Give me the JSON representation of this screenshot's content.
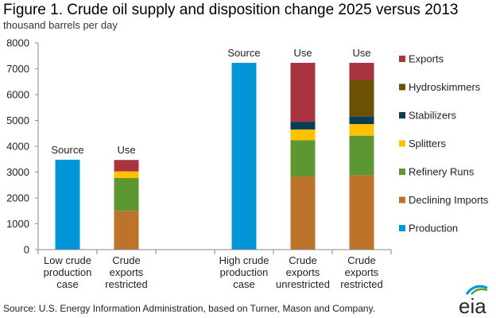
{
  "title": "Figure 1.  Crude oil supply and disposition change 2025 versus 2013",
  "subtitle": "thousand barrels per day",
  "source": "Source:  U.S. Energy Information Administration, based on Turner, Mason and Company.",
  "logo_text": "eia",
  "chart_data": {
    "type": "bar",
    "stacked": true,
    "title": "Figure 1.  Crude oil supply and disposition change 2025 versus 2013",
    "ylabel": "thousand barrels per day",
    "ylim": [
      0,
      8000
    ],
    "yticks": [
      0,
      1000,
      2000,
      3000,
      4000,
      5000,
      6000,
      7000,
      8000
    ],
    "categories": [
      [
        "Low crude",
        "production",
        "case"
      ],
      [
        "Crude",
        "exports",
        "restricted"
      ],
      [],
      [
        "High crude",
        "production",
        "case"
      ],
      [
        "Crude",
        "exports",
        "unrestricted"
      ],
      [
        "Crude",
        "exports",
        "restricted"
      ]
    ],
    "bar_annotations": [
      "Source",
      "Use",
      "",
      "Source",
      "Use",
      "Use"
    ],
    "legend_position": "right",
    "series": [
      {
        "name": "Production",
        "color": "#0096d7",
        "values": [
          3480,
          0,
          0,
          7230,
          0,
          0
        ]
      },
      {
        "name": "Declining Imports",
        "color": "#bd732a",
        "values": [
          0,
          1500,
          0,
          0,
          2830,
          2880
        ]
      },
      {
        "name": "Refinery Runs",
        "color": "#5d9732",
        "values": [
          0,
          1270,
          0,
          0,
          1400,
          1530
        ]
      },
      {
        "name": "Splitters",
        "color": "#ffc000",
        "values": [
          0,
          260,
          0,
          0,
          420,
          450
        ]
      },
      {
        "name": "Stabilizers",
        "color": "#0a3c52",
        "values": [
          0,
          0,
          0,
          0,
          300,
          300
        ]
      },
      {
        "name": "Hydroskimmers",
        "color": "#6b5006",
        "values": [
          0,
          0,
          0,
          0,
          0,
          1410
        ]
      },
      {
        "name": "Exports",
        "color": "#a9333f",
        "values": [
          0,
          440,
          0,
          0,
          2280,
          660
        ]
      }
    ],
    "legend_order": [
      "Exports",
      "Hydroskimmers",
      "Stabilizers",
      "Splitters",
      "Refinery Runs",
      "Declining Imports",
      "Production"
    ]
  }
}
